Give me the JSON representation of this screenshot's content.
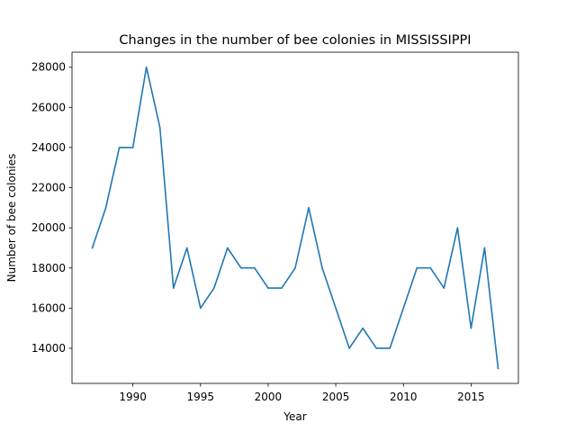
{
  "chart_data": {
    "type": "line",
    "title": "Changes in the number of bee colonies in MISSISSIPPI",
    "xlabel": "Year",
    "ylabel": "Number of bee colonies",
    "xlim": [
      1985.5,
      2018.5
    ],
    "ylim": [
      12250,
      28750
    ],
    "xticks": [
      1990,
      1995,
      2000,
      2005,
      2010,
      2015
    ],
    "yticks": [
      14000,
      16000,
      18000,
      20000,
      22000,
      24000,
      26000,
      28000
    ],
    "grid": false,
    "legend": "none",
    "series": [
      {
        "color": "#1f77b4",
        "x": [
          1987,
          1988,
          1989,
          1990,
          1991,
          1992,
          1993,
          1994,
          1995,
          1996,
          1997,
          1998,
          1999,
          2000,
          2001,
          2002,
          2003,
          2004,
          2005,
          2006,
          2007,
          2008,
          2009,
          2010,
          2011,
          2012,
          2013,
          2014,
          2015,
          2016,
          2017
        ],
        "values": [
          19000,
          21000,
          24000,
          24000,
          28000,
          25000,
          17000,
          19000,
          16000,
          17000,
          19000,
          18000,
          18000,
          17000,
          17000,
          18000,
          21000,
          18000,
          16000,
          14000,
          15000,
          14000,
          14000,
          16000,
          18000,
          18000,
          17000,
          20000,
          15000,
          19000,
          13000
        ]
      }
    ]
  }
}
